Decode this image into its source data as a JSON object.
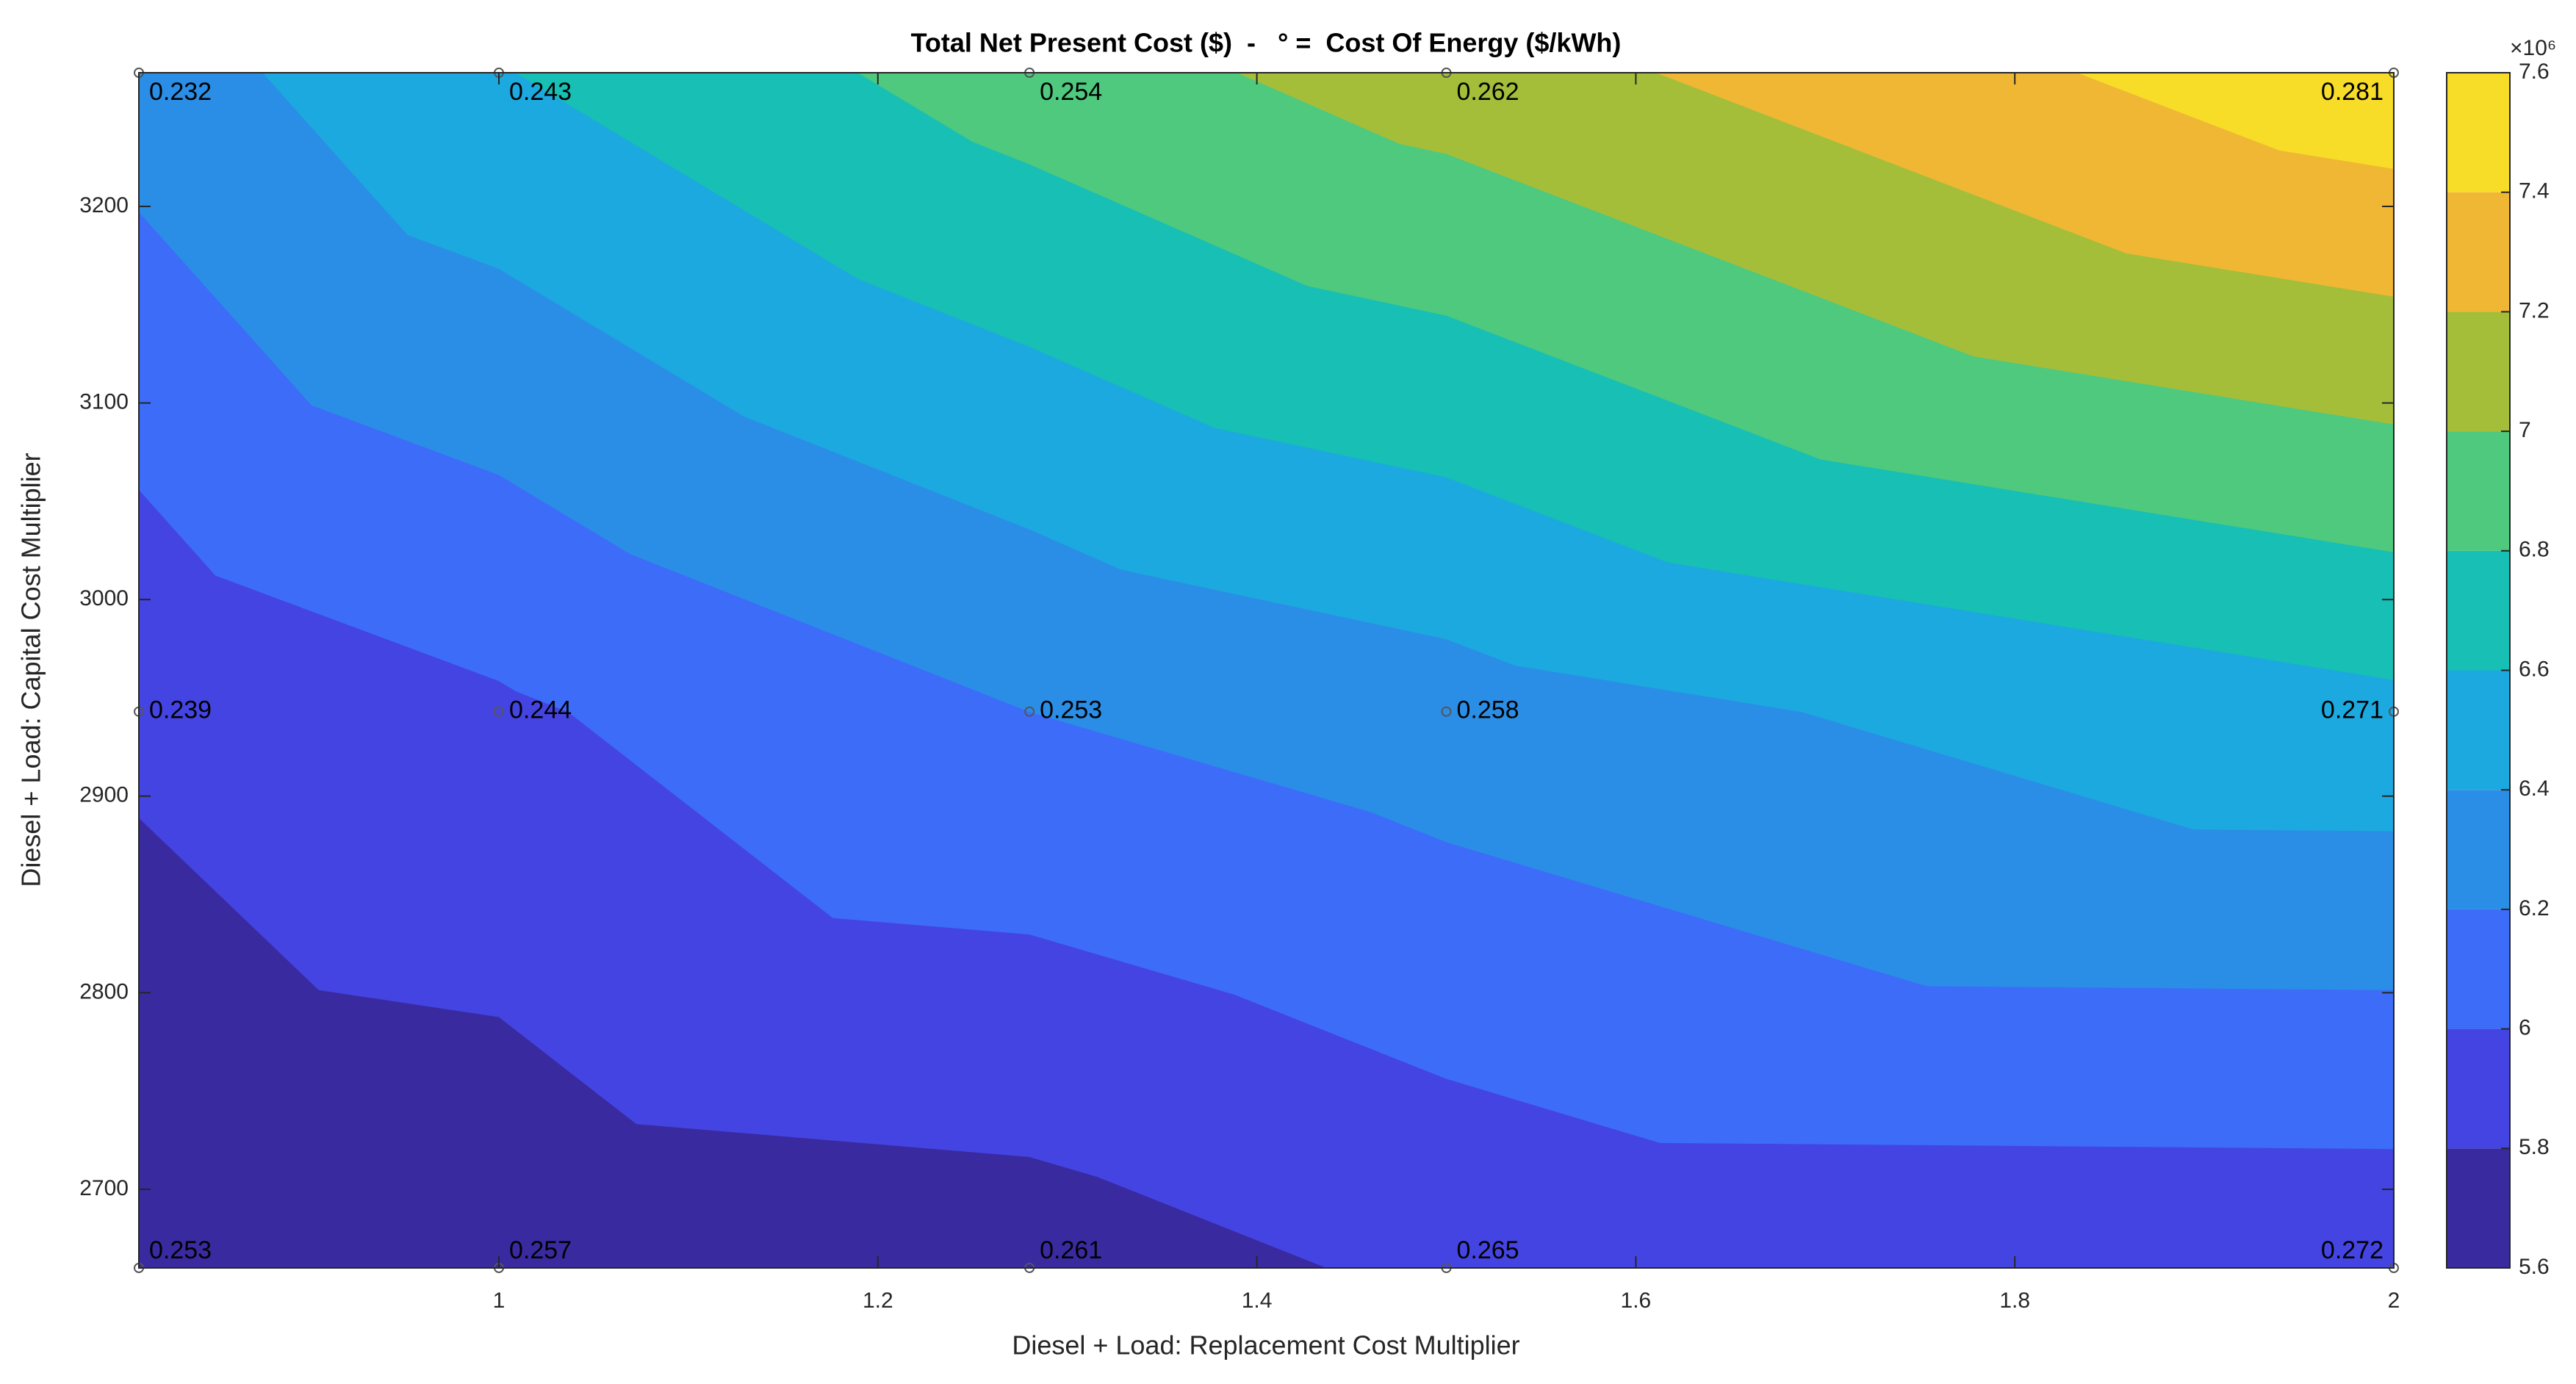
{
  "chart_data": {
    "type": "contourf",
    "title": "Total Net Present Cost ($)  -   ° =  Cost Of Energy ($/kWh)",
    "xlabel": "Diesel + Load: Replacement Cost Multiplier",
    "ylabel": "Diesel + Load: Capital Cost Multiplier",
    "x": [
      0.81,
      1,
      1.28,
      1.5,
      2
    ],
    "y": [
      2660,
      2943,
      3268
    ],
    "z": [
      [
        5.63,
        5.66,
        5.7,
        5.84,
        5.85
      ],
      [
        5.84,
        5.97,
        6.2,
        6.31,
        6.55
      ],
      [
        6.3,
        6.59,
        6.9,
        7.1,
        7.55
      ]
    ],
    "coe": [
      [
        0.253,
        0.257,
        0.261,
        0.265,
        0.272
      ],
      [
        0.239,
        0.244,
        0.253,
        0.258,
        0.271
      ],
      [
        0.232,
        0.243,
        0.254,
        0.262,
        0.281
      ]
    ],
    "levels": [
      5.6,
      5.8,
      6,
      6.2,
      6.4,
      6.6,
      6.8,
      7,
      7.2,
      7.4,
      7.6
    ],
    "colors": [
      "#3a2aa0",
      "#4444e2",
      "#3d6cf9",
      "#2b8ee6",
      "#1ca9df",
      "#17bfb4",
      "#4ec97e",
      "#a4be3a",
      "#f0b734",
      "#f8dd28"
    ],
    "xlim": [
      0.81,
      2
    ],
    "ylim": [
      2660,
      3268
    ],
    "xticks": [
      1,
      1.2,
      1.4,
      1.6,
      1.8,
      2
    ],
    "yticks": [
      2700,
      2800,
      2900,
      3000,
      3100,
      3200
    ],
    "clim": [
      5.6,
      7.6
    ],
    "cticks": [
      5.6,
      5.8,
      6,
      6.2,
      6.4,
      6.6,
      6.8,
      7,
      7.2,
      7.4,
      7.6
    ],
    "colorbar_exponent": "×10⁶"
  }
}
